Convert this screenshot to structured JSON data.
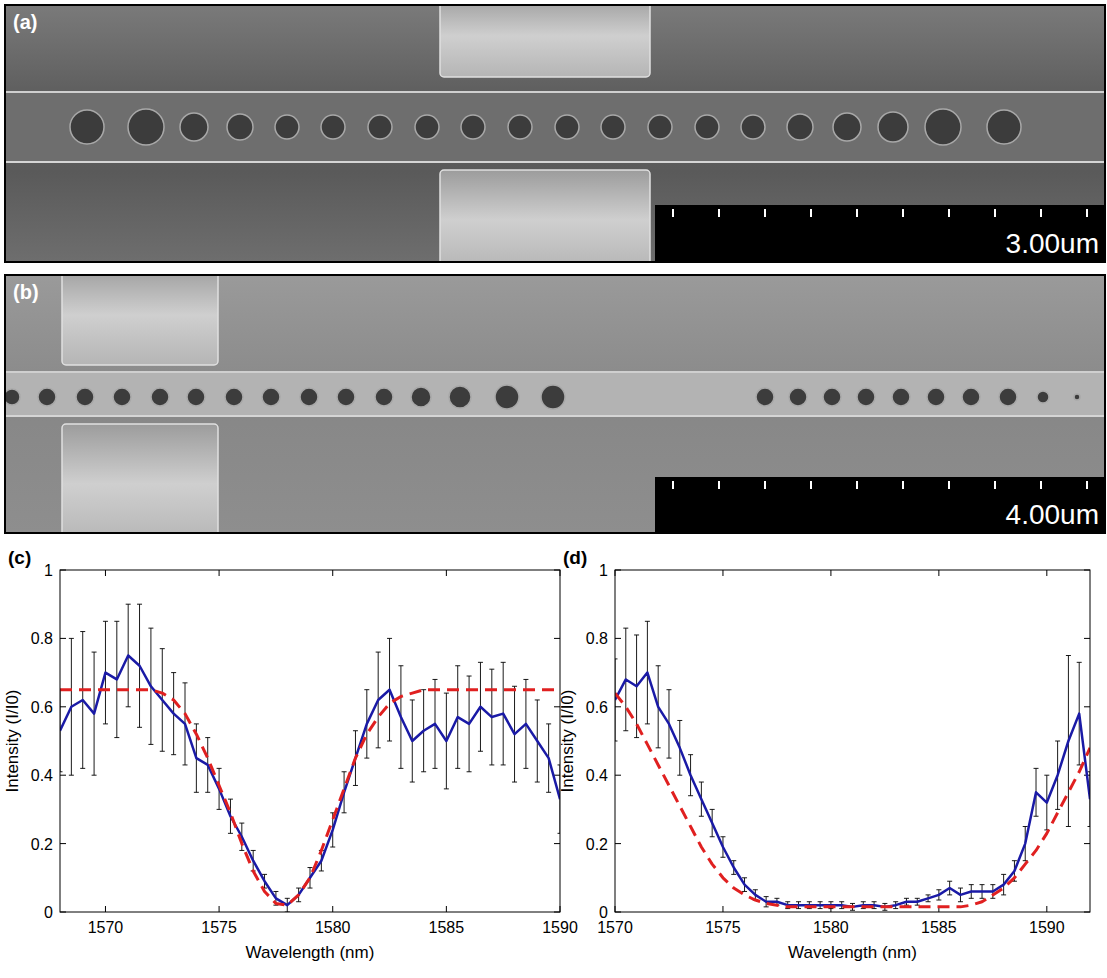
{
  "images": [
    {
      "label": "(a)",
      "scale_bar": "3.00um"
    },
    {
      "label": "(b)",
      "scale_bar": "4.00um"
    }
  ],
  "chart_data": [
    {
      "type": "line",
      "panel_label": "(c)",
      "x_label": "Wavelength (nm)",
      "y_label": "Intensity (I/I0)",
      "xlim": [
        1568,
        1590
      ],
      "xticks": [
        1570,
        1575,
        1580,
        1585,
        1590
      ],
      "ylim": [
        0,
        1
      ],
      "yticks": [
        0,
        0.2,
        0.4,
        0.6,
        0.8,
        1
      ],
      "x": [
        1568,
        1568.5,
        1569,
        1569.5,
        1570,
        1570.5,
        1571,
        1571.5,
        1572,
        1572.5,
        1573,
        1573.5,
        1574,
        1574.5,
        1575,
        1575.5,
        1576,
        1576.5,
        1577,
        1577.5,
        1578,
        1578.5,
        1579,
        1579.5,
        1580,
        1580.5,
        1581,
        1581.5,
        1582,
        1582.5,
        1583,
        1583.5,
        1584,
        1584.5,
        1585,
        1585.5,
        1586,
        1586.5,
        1587,
        1587.5,
        1588,
        1588.5,
        1589,
        1589.5,
        1590
      ],
      "series": [
        {
          "color": "#1a1aa6",
          "line_style": "solid",
          "marker": "none",
          "values": [
            0.53,
            0.6,
            0.62,
            0.58,
            0.7,
            0.68,
            0.75,
            0.72,
            0.66,
            0.62,
            0.58,
            0.55,
            0.45,
            0.43,
            0.36,
            0.28,
            0.22,
            0.15,
            0.09,
            0.04,
            0.02,
            0.05,
            0.1,
            0.15,
            0.24,
            0.35,
            0.45,
            0.55,
            0.62,
            0.65,
            0.57,
            0.5,
            0.53,
            0.55,
            0.5,
            0.57,
            0.55,
            0.6,
            0.57,
            0.58,
            0.52,
            0.55,
            0.5,
            0.45,
            0.33
          ],
          "errors": [
            0.12,
            0.2,
            0.2,
            0.18,
            0.15,
            0.17,
            0.15,
            0.18,
            0.17,
            0.15,
            0.12,
            0.12,
            0.1,
            0.08,
            0.06,
            0.05,
            0.04,
            0.03,
            0.02,
            0.02,
            0.02,
            0.02,
            0.03,
            0.03,
            0.05,
            0.06,
            0.08,
            0.1,
            0.14,
            0.15,
            0.15,
            0.12,
            0.12,
            0.13,
            0.14,
            0.15,
            0.14,
            0.13,
            0.14,
            0.15,
            0.14,
            0.13,
            0.12,
            0.1,
            0.1
          ]
        },
        {
          "color": "#e02020",
          "line_style": "dashed",
          "marker": "none",
          "values": [
            0.65,
            0.65,
            0.65,
            0.65,
            0.65,
            0.65,
            0.65,
            0.65,
            0.65,
            0.64,
            0.62,
            0.58,
            0.52,
            0.45,
            0.37,
            0.29,
            0.2,
            0.12,
            0.06,
            0.025,
            0.02,
            0.05,
            0.1,
            0.18,
            0.27,
            0.36,
            0.45,
            0.52,
            0.57,
            0.61,
            0.63,
            0.64,
            0.65,
            0.65,
            0.65,
            0.65,
            0.65,
            0.65,
            0.65,
            0.65,
            0.65,
            0.65,
            0.65,
            0.65,
            0.65
          ]
        }
      ]
    },
    {
      "type": "line",
      "panel_label": "(d)",
      "x_label": "Wavelength (nm)",
      "y_label": "Intensity (I/I0)",
      "xlim": [
        1570,
        1592
      ],
      "xticks": [
        1570,
        1575,
        1580,
        1585,
        1590
      ],
      "ylim": [
        0,
        1
      ],
      "yticks": [
        0,
        0.2,
        0.4,
        0.6,
        0.8,
        1
      ],
      "x": [
        1570,
        1570.5,
        1571,
        1571.5,
        1572,
        1572.5,
        1573,
        1573.5,
        1574,
        1574.5,
        1575,
        1575.5,
        1576,
        1576.5,
        1577,
        1577.5,
        1578,
        1578.5,
        1579,
        1579.5,
        1580,
        1580.5,
        1581,
        1581.5,
        1582,
        1582.5,
        1583,
        1583.5,
        1584,
        1584.5,
        1585,
        1585.5,
        1586,
        1586.5,
        1587,
        1587.5,
        1588,
        1588.5,
        1589,
        1589.5,
        1590,
        1590.5,
        1591,
        1591.5,
        1592
      ],
      "series": [
        {
          "color": "#1a1aa6",
          "line_style": "solid",
          "marker": "none",
          "values": [
            0.62,
            0.68,
            0.66,
            0.7,
            0.6,
            0.55,
            0.48,
            0.4,
            0.33,
            0.26,
            0.19,
            0.13,
            0.08,
            0.05,
            0.03,
            0.03,
            0.02,
            0.02,
            0.02,
            0.02,
            0.02,
            0.02,
            0.015,
            0.02,
            0.02,
            0.015,
            0.02,
            0.03,
            0.03,
            0.04,
            0.05,
            0.07,
            0.05,
            0.06,
            0.06,
            0.06,
            0.08,
            0.12,
            0.2,
            0.35,
            0.32,
            0.4,
            0.5,
            0.58,
            0.33
          ],
          "errors": [
            0.12,
            0.15,
            0.15,
            0.15,
            0.12,
            0.1,
            0.08,
            0.06,
            0.05,
            0.04,
            0.03,
            0.02,
            0.02,
            0.015,
            0.015,
            0.01,
            0.01,
            0.01,
            0.01,
            0.01,
            0.01,
            0.01,
            0.01,
            0.01,
            0.01,
            0.01,
            0.01,
            0.01,
            0.01,
            0.01,
            0.015,
            0.02,
            0.02,
            0.02,
            0.02,
            0.02,
            0.03,
            0.03,
            0.05,
            0.07,
            0.08,
            0.1,
            0.25,
            0.15,
            0.08
          ]
        },
        {
          "color": "#e02020",
          "line_style": "dashed",
          "marker": "none",
          "values": [
            0.64,
            0.6,
            0.55,
            0.49,
            0.43,
            0.37,
            0.31,
            0.25,
            0.19,
            0.14,
            0.1,
            0.07,
            0.05,
            0.035,
            0.025,
            0.02,
            0.015,
            0.015,
            0.015,
            0.015,
            0.015,
            0.015,
            0.015,
            0.015,
            0.015,
            0.015,
            0.015,
            0.015,
            0.015,
            0.015,
            0.015,
            0.015,
            0.015,
            0.02,
            0.03,
            0.05,
            0.07,
            0.1,
            0.14,
            0.18,
            0.23,
            0.29,
            0.35,
            0.41,
            0.48
          ]
        }
      ]
    }
  ]
}
